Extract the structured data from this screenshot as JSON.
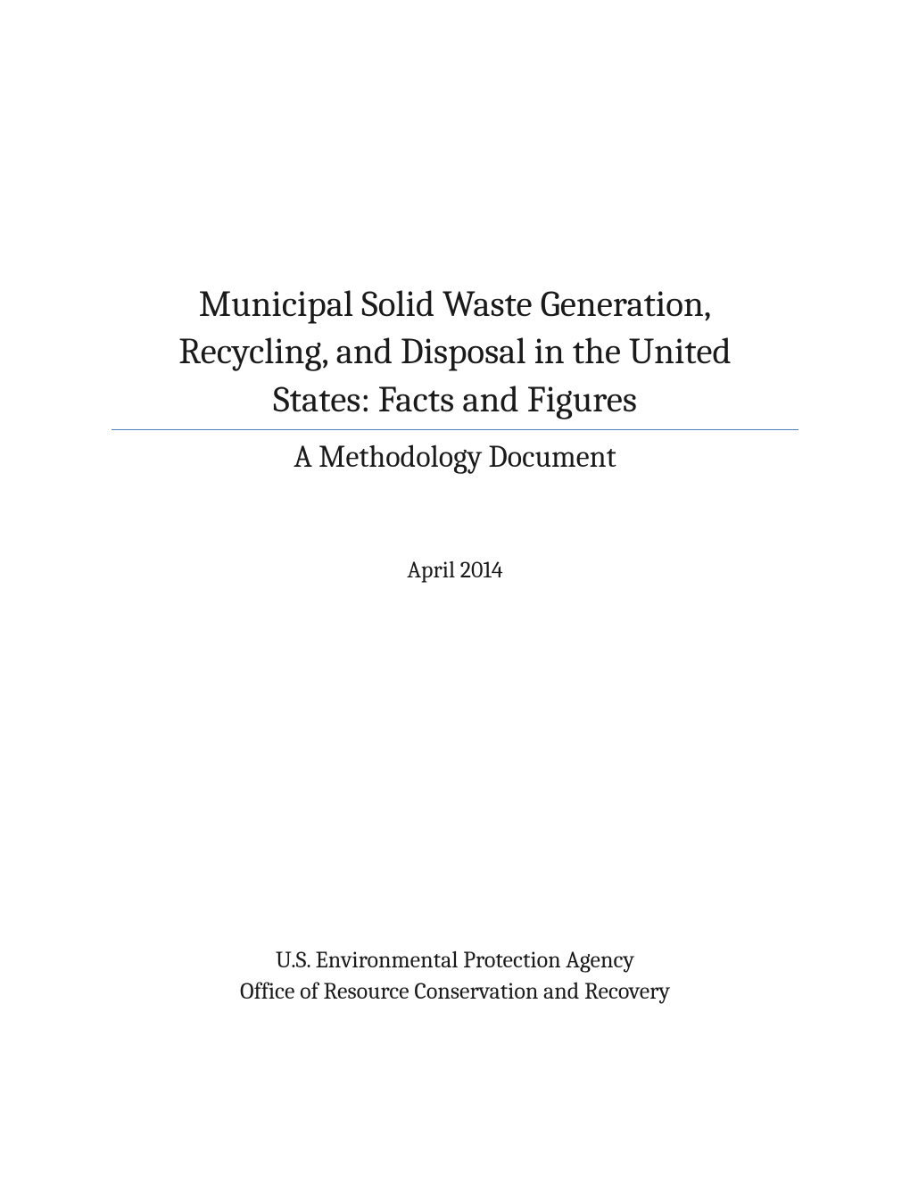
{
  "title": {
    "line1": "Municipal Solid Waste Generation,",
    "line2": "Recycling, and Disposal in the United",
    "line3": "States: Facts and Figures"
  },
  "subtitle": "A Methodology Document",
  "date": "April 2014",
  "agency": {
    "line1": "U.S. Environmental Protection Agency",
    "line2": "Office of Resource Conservation and Recovery"
  },
  "colors": {
    "text": "#1a1a1a",
    "divider": "#4f81bd",
    "background": "#ffffff"
  },
  "typography": {
    "title_fontsize": 41,
    "subtitle_fontsize": 34,
    "date_fontsize": 26,
    "agency_fontsize": 26,
    "font_family": "Cambria, Georgia, serif"
  }
}
